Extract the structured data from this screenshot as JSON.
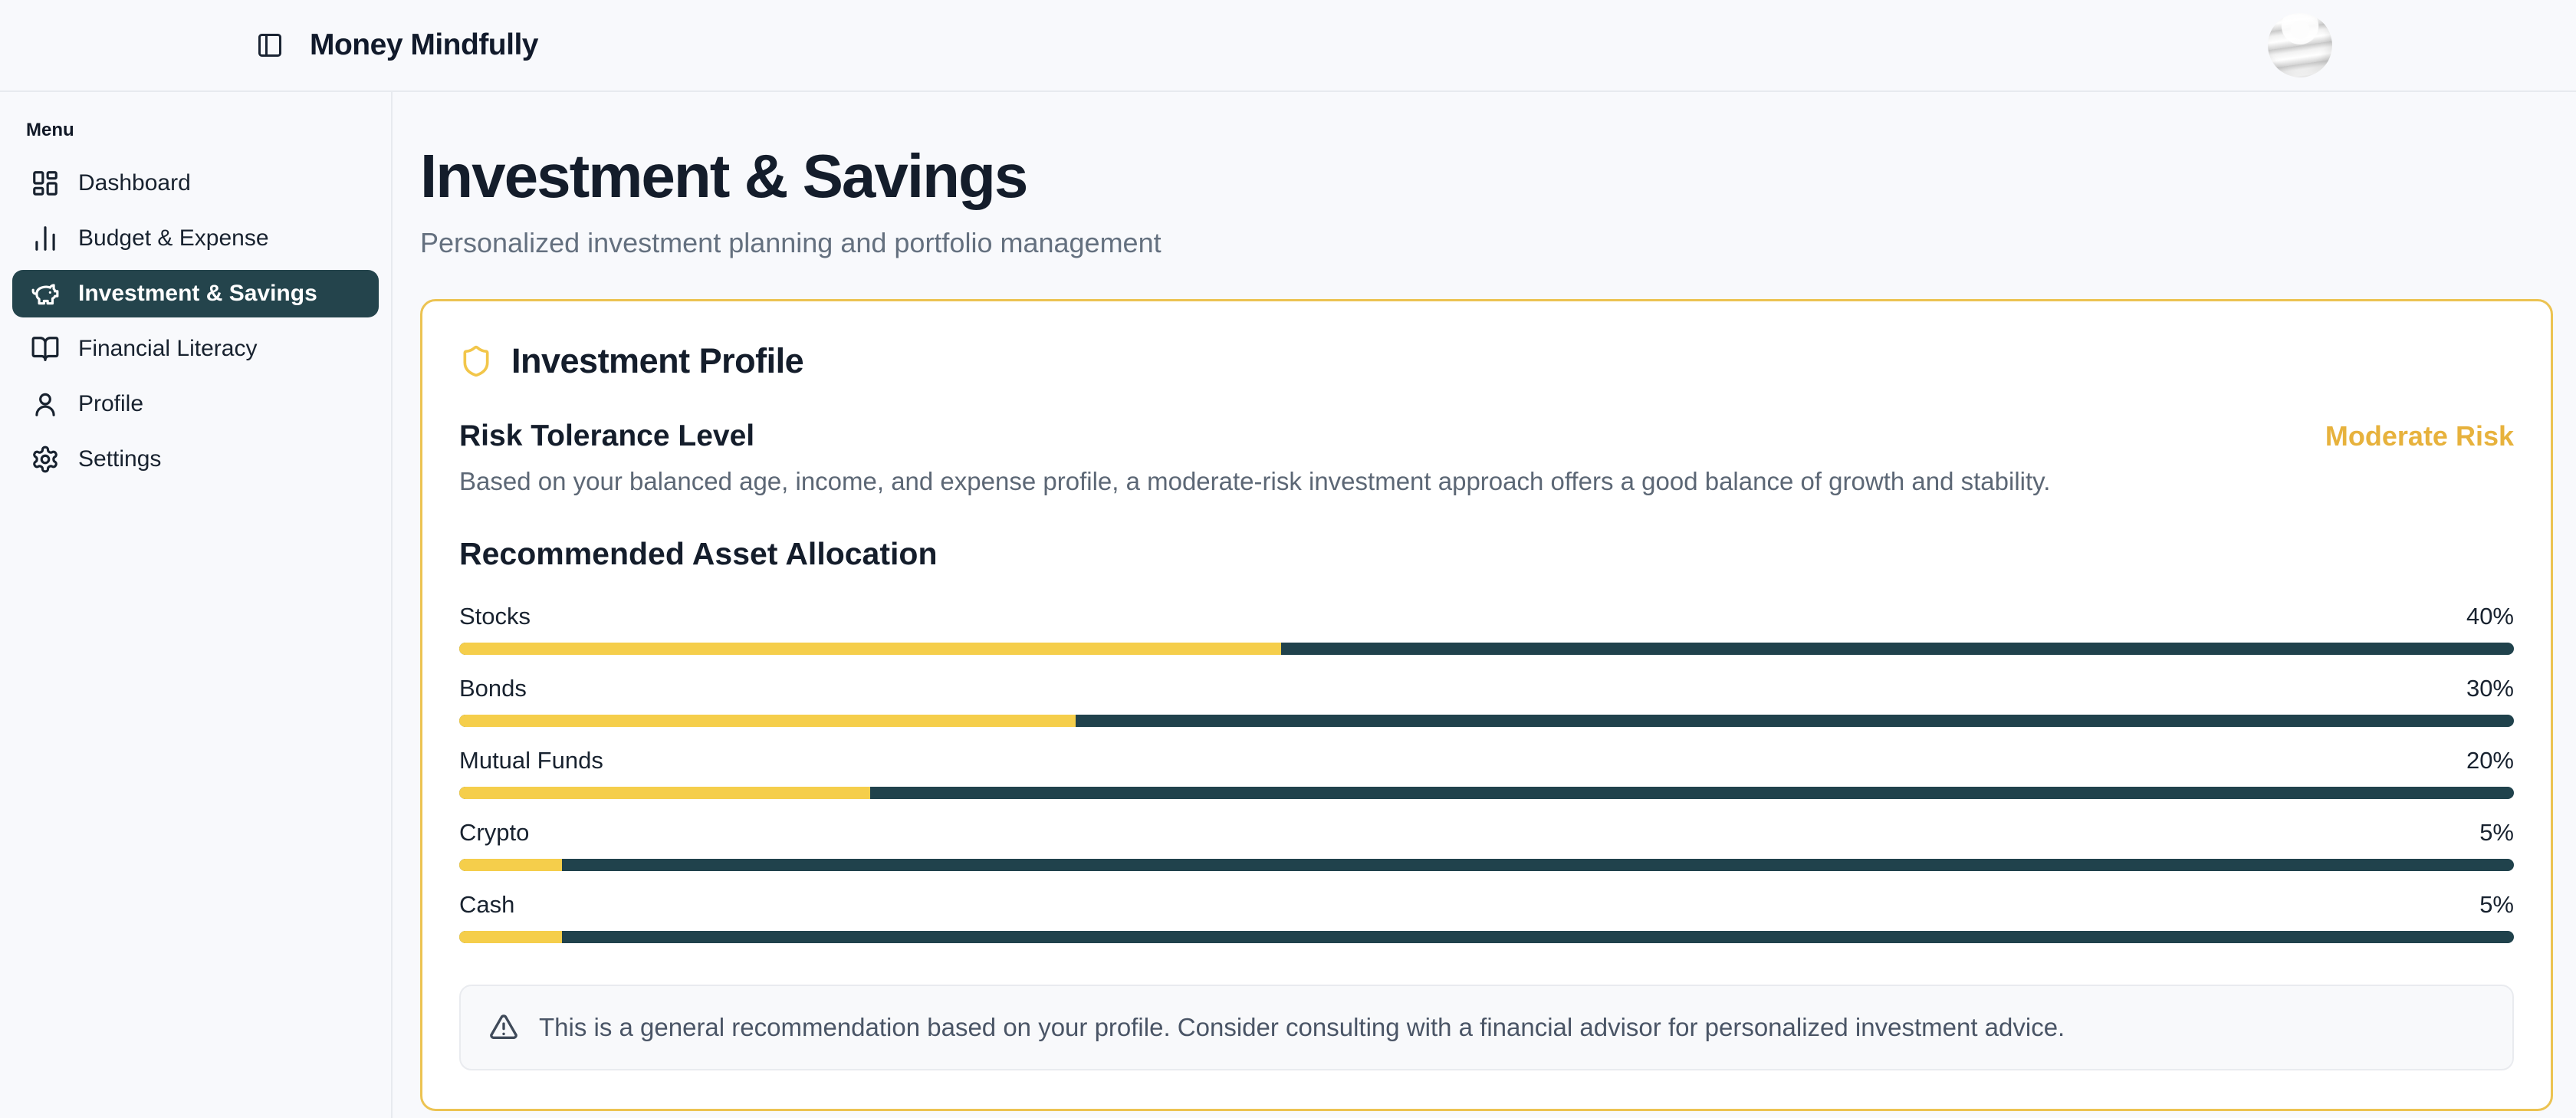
{
  "app": {
    "title": "Money Mindfully"
  },
  "sidebar": {
    "section_label": "Menu",
    "items": [
      {
        "label": "Dashboard",
        "icon": "dashboard-icon",
        "active": false
      },
      {
        "label": "Budget & Expense",
        "icon": "bar-chart-icon",
        "active": false
      },
      {
        "label": "Investment & Savings",
        "icon": "piggy-bank-icon",
        "active": true
      },
      {
        "label": "Financial Literacy",
        "icon": "book-open-icon",
        "active": false
      },
      {
        "label": "Profile",
        "icon": "user-icon",
        "active": false
      },
      {
        "label": "Settings",
        "icon": "gear-icon",
        "active": false
      }
    ]
  },
  "page": {
    "title": "Investment & Savings",
    "subtitle": "Personalized investment planning and portfolio management"
  },
  "profile_card": {
    "title": "Investment Profile",
    "risk": {
      "heading": "Risk Tolerance Level",
      "level_label": "Moderate Risk",
      "description": "Based on your balanced age, income, and expense profile, a moderate-risk investment approach offers a good balance of growth and stability."
    },
    "allocation": {
      "heading": "Recommended Asset Allocation",
      "items": [
        {
          "label": "Stocks",
          "percent": 40,
          "value_label": "40%"
        },
        {
          "label": "Bonds",
          "percent": 30,
          "value_label": "30%"
        },
        {
          "label": "Mutual Funds",
          "percent": 20,
          "value_label": "20%"
        },
        {
          "label": "Crypto",
          "percent": 5,
          "value_label": "5%"
        },
        {
          "label": "Cash",
          "percent": 5,
          "value_label": "5%"
        }
      ]
    },
    "disclaimer": "This is a general recommendation based on your profile. Consider consulting with a financial advisor for personalized investment advice."
  },
  "colors": {
    "accent_gold": "#F5CE4B",
    "gold_border": "#ECC352",
    "gold_text": "#E7B23D",
    "dark_teal": "#24444C",
    "bar_track": "#20424C",
    "text_dark": "#141D2B",
    "text_gray": "#5C6775",
    "background": "#F8F9FC"
  }
}
